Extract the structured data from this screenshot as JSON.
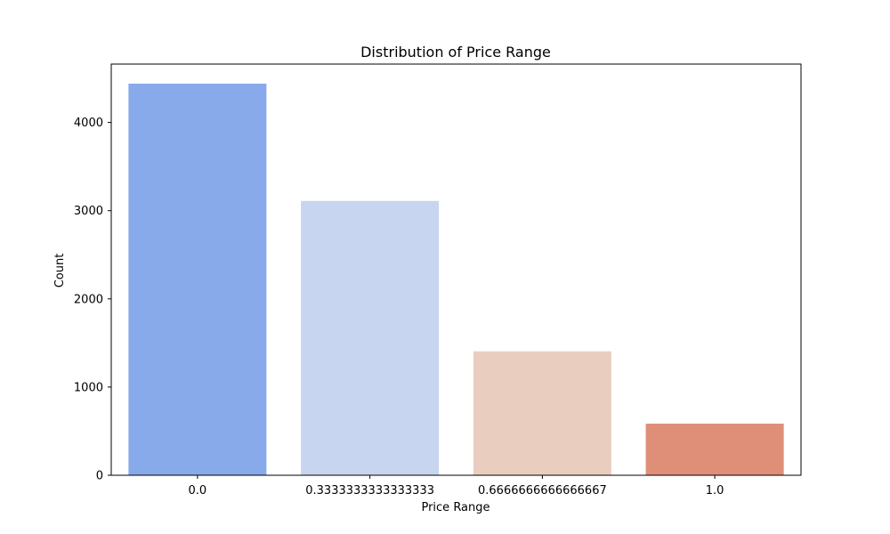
{
  "chart_data": {
    "type": "bar",
    "title": "Distribution of Price Range",
    "xlabel": "Price Range",
    "ylabel": "Count",
    "categories": [
      "0.0",
      "0.3333333333333333",
      "0.6666666666666667",
      "1.0"
    ],
    "values": [
      4440,
      3110,
      1405,
      585
    ],
    "colors": [
      "#88a9ea",
      "#c8d5f0",
      "#e9cdbf",
      "#df8e78"
    ],
    "ylim": [
      0,
      4662
    ],
    "yticks": [
      0,
      1000,
      2000,
      3000,
      4000
    ],
    "grid": false,
    "legend": "none"
  }
}
